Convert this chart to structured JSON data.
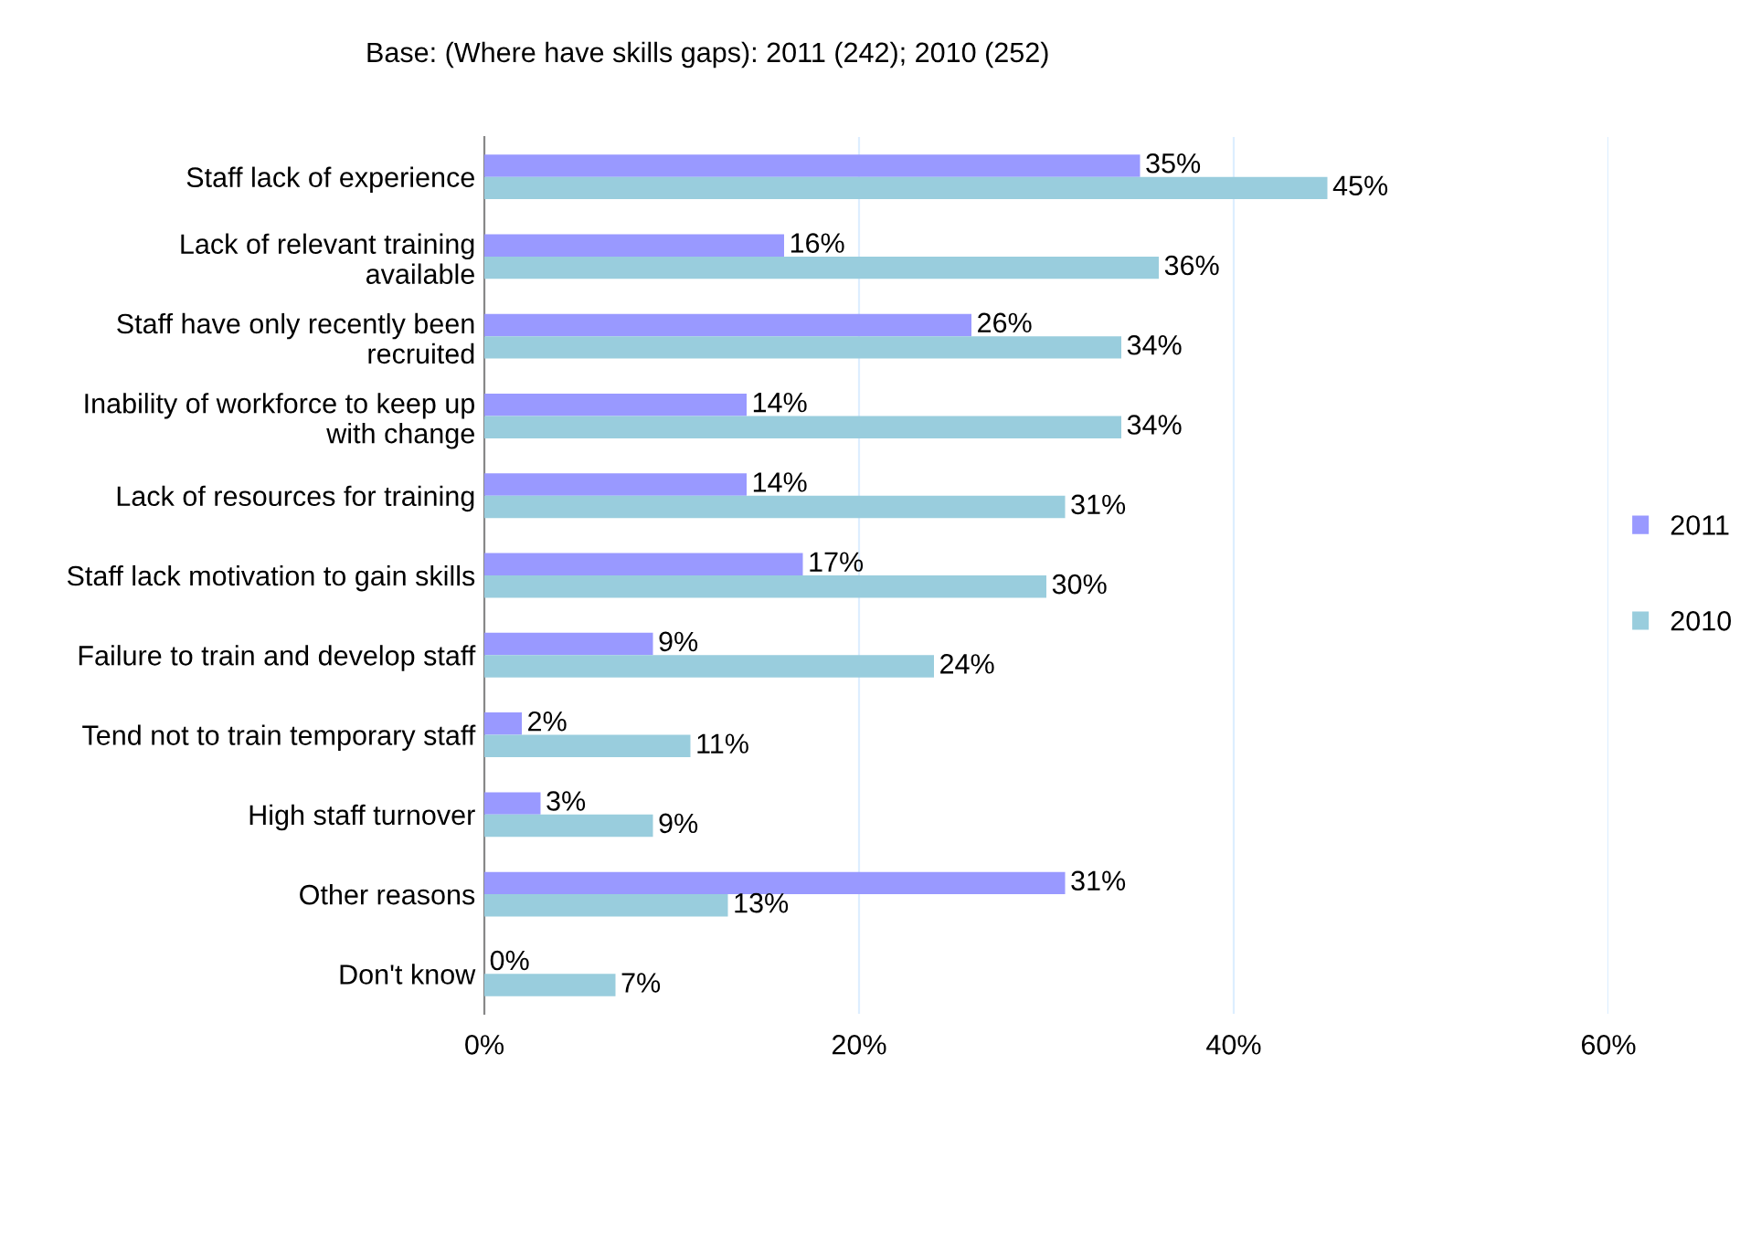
{
  "chart_data": {
    "type": "bar",
    "orientation": "horizontal",
    "title": "Base: (Where have skills gaps): 2011 (242); 2010 (252)",
    "categories": [
      "Staff lack of experience",
      "Lack of relevant training\navailable",
      "Staff have only recently been\nrecruited",
      "Inability of workforce to keep up\nwith change",
      "Lack of resources for training",
      "Staff lack motivation to gain skills",
      "Failure to train and develop staff",
      "Tend not to train temporary staff",
      "High staff turnover",
      "Other reasons",
      "Don't know"
    ],
    "series": [
      {
        "name": "2011",
        "color": "#9999ff",
        "values": [
          35,
          16,
          26,
          14,
          14,
          17,
          9,
          2,
          3,
          31,
          0
        ],
        "value_labels": [
          "35%",
          "16%",
          "26%",
          "14%",
          "14%",
          "17%",
          "9%",
          "2%",
          "3%",
          "31%",
          "0%"
        ]
      },
      {
        "name": "2010",
        "color": "#99cddd",
        "values": [
          45,
          36,
          34,
          34,
          31,
          30,
          24,
          11,
          9,
          13,
          7
        ],
        "value_labels": [
          "45%",
          "36%",
          "34%",
          "34%",
          "31%",
          "30%",
          "24%",
          "11%",
          "9%",
          "13%",
          "7%"
        ]
      }
    ],
    "xlim": [
      0,
      60
    ],
    "xticks": [
      {
        "value": 0,
        "label": "0%"
      },
      {
        "value": 20,
        "label": "20%"
      },
      {
        "value": 40,
        "label": "40%"
      },
      {
        "value": 60,
        "label": "60%"
      }
    ],
    "grid": "x",
    "legend": "right"
  }
}
